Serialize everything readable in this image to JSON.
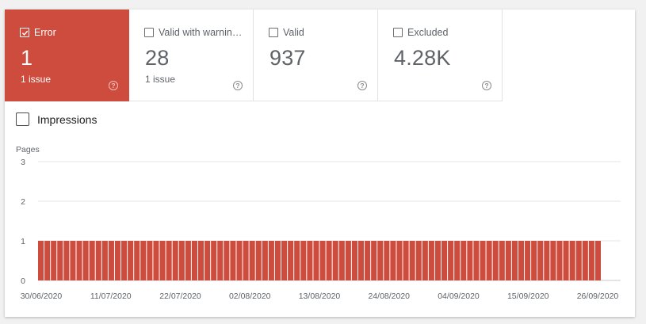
{
  "tiles": [
    {
      "label": "Error",
      "value": "1",
      "sub": "1 issue",
      "checked": true
    },
    {
      "label": "Valid with warnin…",
      "value": "28",
      "sub": "1 issue",
      "checked": false
    },
    {
      "label": "Valid",
      "value": "937",
      "sub": "",
      "checked": false
    },
    {
      "label": "Excluded",
      "value": "4.28K",
      "sub": "",
      "checked": false
    }
  ],
  "impressions_label": "Impressions",
  "colors": {
    "error": "#cd4c3d",
    "grid": "#e6e6e6",
    "axis": "#c8c8c8",
    "text": "#5f6368"
  },
  "chart_data": {
    "type": "bar",
    "ylabel": "Pages",
    "ylim": [
      0,
      3
    ],
    "yticks": [
      0,
      1,
      2,
      3
    ],
    "x_tick_labels": [
      "30/06/2020",
      "11/07/2020",
      "22/07/2020",
      "02/08/2020",
      "13/08/2020",
      "24/08/2020",
      "04/09/2020",
      "15/09/2020",
      "26/09/2020"
    ],
    "series": [
      {
        "values": [
          1,
          1,
          1,
          1,
          1,
          1,
          1,
          1,
          1,
          1,
          1,
          1,
          1,
          1,
          1,
          1,
          1,
          1,
          1,
          1,
          1,
          1,
          1,
          1,
          1,
          1,
          1,
          1,
          1,
          1,
          1,
          1,
          1,
          1,
          1,
          1,
          1,
          1,
          1,
          1,
          1,
          1,
          1,
          1,
          1,
          1,
          1,
          1,
          1,
          1,
          1,
          1,
          1,
          1,
          1,
          1,
          1,
          1,
          1,
          1,
          1,
          1,
          1,
          1,
          1,
          1,
          1,
          1,
          1,
          1,
          1,
          1,
          1,
          1,
          1,
          1,
          1,
          1,
          1,
          1,
          1,
          1,
          1,
          1,
          1,
          1,
          1,
          1
        ]
      }
    ],
    "grid": true,
    "legend": "none"
  }
}
